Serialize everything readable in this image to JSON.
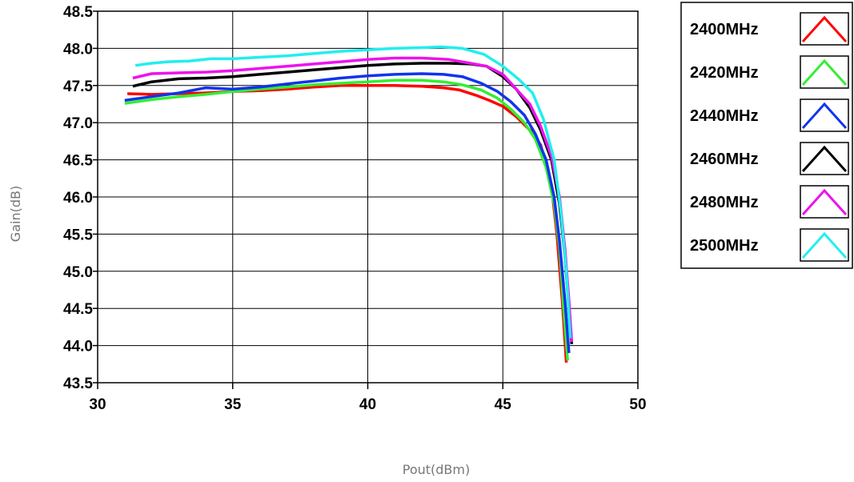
{
  "chart_data": {
    "type": "line",
    "title": "",
    "xlabel": "Pout(dBm)",
    "ylabel": "Gain(dB)",
    "xlim": [
      30,
      50
    ],
    "ylim": [
      43.5,
      48.5
    ],
    "xticks": [
      "30",
      "35",
      "40",
      "45",
      "50"
    ],
    "yticks": [
      "43.5",
      "44.0",
      "44.5",
      "45.0",
      "45.5",
      "46.0",
      "46.5",
      "47.0",
      "47.5",
      "48.0",
      "48.5"
    ],
    "grid": true,
    "legend_position": "right",
    "series": [
      {
        "name": "2400MHz",
        "color": "#ff0000",
        "x": [
          31.1,
          32.0,
          33.0,
          34.0,
          35.0,
          36.0,
          37.0,
          38.0,
          39.0,
          40.0,
          41.0,
          42.0,
          42.8,
          43.4,
          44.0,
          44.5,
          45.0,
          45.5,
          46.0,
          46.4,
          46.8,
          47.0,
          47.2,
          47.35
        ],
        "y": [
          47.39,
          47.38,
          47.39,
          47.4,
          47.42,
          47.43,
          47.45,
          47.48,
          47.5,
          47.5,
          47.5,
          47.49,
          47.47,
          47.44,
          47.37,
          47.3,
          47.22,
          47.08,
          46.9,
          46.7,
          46.15,
          45.5,
          44.6,
          43.77
        ]
      },
      {
        "name": "2420MHz",
        "color": "#33ee33",
        "x": [
          31.0,
          32.0,
          33.0,
          34.0,
          35.0,
          36.0,
          37.0,
          38.0,
          39.0,
          40.0,
          41.0,
          42.0,
          42.8,
          43.5,
          44.2,
          44.8,
          45.3,
          45.8,
          46.2,
          46.6,
          46.9,
          47.1,
          47.25,
          47.4
        ],
        "y": [
          47.26,
          47.31,
          47.35,
          47.38,
          47.42,
          47.45,
          47.48,
          47.51,
          47.53,
          47.55,
          47.57,
          47.57,
          47.55,
          47.51,
          47.44,
          47.33,
          47.18,
          47.0,
          46.78,
          46.4,
          45.9,
          45.3,
          44.5,
          43.8
        ]
      },
      {
        "name": "2440MHz",
        "color": "#1133ee",
        "x": [
          31.0,
          32.0,
          33.0,
          34.0,
          35.0,
          36.0,
          37.0,
          38.0,
          39.0,
          40.0,
          41.0,
          42.0,
          42.8,
          43.5,
          44.2,
          44.8,
          45.3,
          45.8,
          46.2,
          46.6,
          46.9,
          47.1,
          47.3,
          47.45
        ],
        "y": [
          47.3,
          47.35,
          47.4,
          47.47,
          47.45,
          47.48,
          47.52,
          47.56,
          47.6,
          47.63,
          47.65,
          47.66,
          47.65,
          47.62,
          47.53,
          47.42,
          47.28,
          47.1,
          46.85,
          46.5,
          46.0,
          45.4,
          44.6,
          43.9
        ]
      },
      {
        "name": "2460MHz",
        "color": "#000000",
        "x": [
          31.3,
          32.0,
          33.0,
          34.0,
          35.0,
          36.0,
          37.0,
          38.0,
          39.0,
          40.0,
          41.0,
          42.0,
          43.0,
          43.8,
          44.4,
          45.0,
          45.5,
          46.0,
          46.4,
          46.8,
          47.1,
          47.3,
          47.45,
          47.55
        ],
        "y": [
          47.49,
          47.55,
          47.59,
          47.6,
          47.62,
          47.65,
          47.68,
          47.71,
          47.74,
          47.77,
          47.79,
          47.8,
          47.8,
          47.79,
          47.76,
          47.62,
          47.45,
          47.2,
          46.9,
          46.5,
          45.9,
          45.2,
          44.5,
          44.02
        ]
      },
      {
        "name": "2480MHz",
        "color": "#ee11ee",
        "x": [
          31.3,
          32.0,
          33.0,
          34.0,
          35.0,
          36.0,
          37.0,
          38.0,
          39.0,
          40.0,
          41.0,
          42.0,
          43.0,
          43.8,
          44.4,
          45.0,
          45.5,
          46.0,
          46.4,
          46.8,
          47.1,
          47.3,
          47.45,
          47.55
        ],
        "y": [
          47.6,
          47.66,
          47.67,
          47.68,
          47.7,
          47.73,
          47.76,
          47.79,
          47.82,
          47.85,
          47.87,
          47.87,
          47.85,
          47.8,
          47.76,
          47.65,
          47.45,
          47.25,
          46.95,
          46.55,
          46.0,
          45.3,
          44.6,
          44.05
        ]
      },
      {
        "name": "2500MHz",
        "color": "#22eeee",
        "x": [
          31.4,
          32.0,
          32.6,
          33.4,
          34.2,
          35.0,
          36.0,
          37.0,
          38.0,
          39.0,
          40.0,
          41.0,
          42.0,
          42.7,
          43.5,
          44.3,
          45.0,
          45.6,
          46.1,
          46.5,
          46.9,
          47.15,
          47.35,
          47.5
        ],
        "y": [
          47.77,
          47.8,
          47.82,
          47.83,
          47.86,
          47.86,
          47.88,
          47.9,
          47.93,
          47.96,
          47.98,
          48.0,
          48.01,
          48.02,
          48.0,
          47.92,
          47.76,
          47.58,
          47.4,
          47.05,
          46.5,
          45.8,
          45.0,
          44.1
        ]
      }
    ]
  }
}
